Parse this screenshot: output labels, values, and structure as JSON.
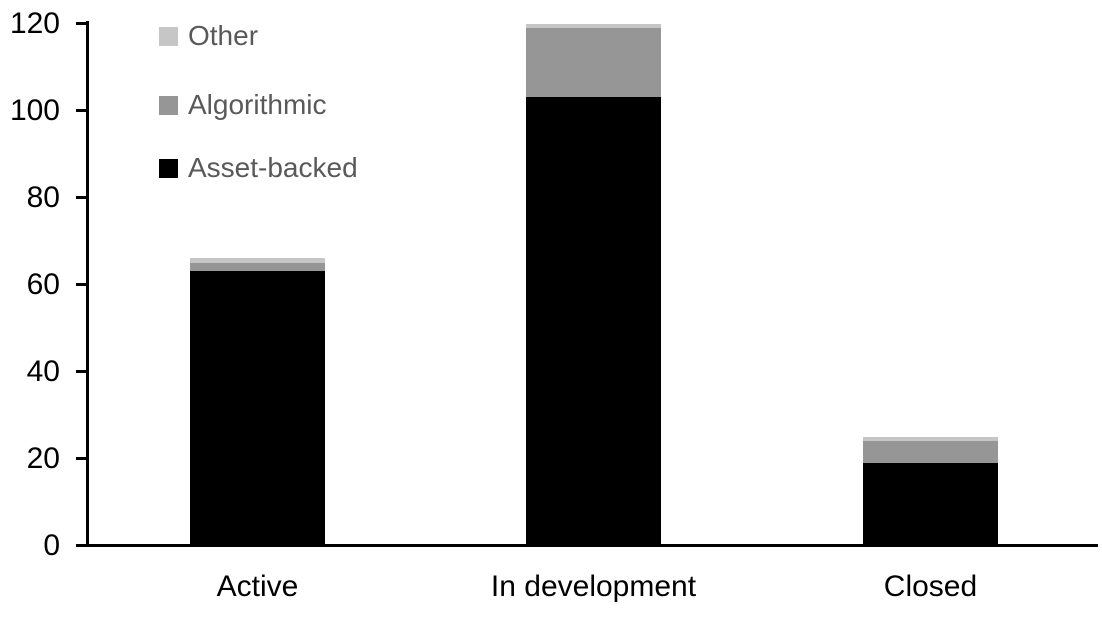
{
  "chart_data": {
    "type": "bar",
    "stacked": true,
    "title": "",
    "xlabel": "",
    "ylabel": "",
    "categories": [
      "Active",
      "In development",
      "Closed"
    ],
    "series": [
      {
        "name": "Asset-backed",
        "color": "#000000",
        "values": [
          63,
          103,
          19
        ]
      },
      {
        "name": "Algorithmic",
        "color": "#969696",
        "values": [
          2,
          16,
          5
        ]
      },
      {
        "name": "Other",
        "color": "#c6c6c6",
        "values": [
          1,
          1,
          1
        ]
      }
    ],
    "totals": [
      66,
      120,
      25
    ],
    "ylim": [
      0,
      120
    ],
    "yticks": [
      0,
      20,
      40,
      60,
      80,
      100,
      120
    ],
    "grid": false,
    "legend_position": "top-left",
    "legend_order_top_to_bottom": [
      "Other",
      "Algorithmic",
      "Asset-backed"
    ]
  },
  "colors": {
    "background": "#ffffff",
    "axis": "#000000",
    "legend_text": "#595959"
  }
}
